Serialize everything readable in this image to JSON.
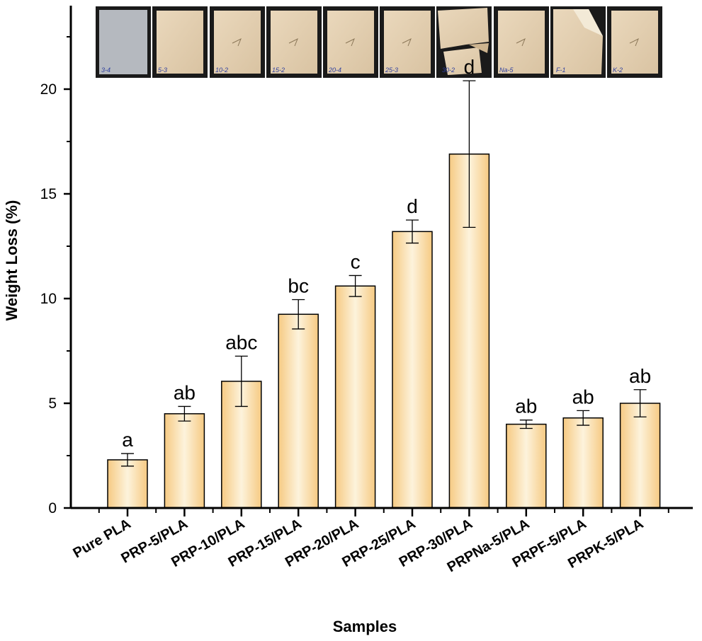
{
  "chart_data": {
    "type": "bar",
    "title": "",
    "xlabel": "Samples",
    "ylabel": "Weight Loss (%)",
    "ylim": [
      0,
      25
    ],
    "yticks": [
      0,
      5,
      10,
      15,
      20
    ],
    "categories": [
      "Pure PLA",
      "PRP-5/PLA",
      "PRP-10/PLA",
      "PRP-15/PLA",
      "PRP-20/PLA",
      "PRP-25/PLA",
      "PRP-30/PLA",
      "PRPNa-5/PLA",
      "PRPF-5/PLA",
      "PRPK-5/PLA"
    ],
    "values": [
      2.3,
      4.5,
      6.05,
      9.25,
      10.6,
      13.2,
      16.9,
      4.0,
      4.3,
      5.0
    ],
    "errors": [
      0.3,
      0.35,
      1.2,
      0.7,
      0.5,
      0.55,
      3.5,
      0.2,
      0.35,
      0.65
    ],
    "significance": [
      "a",
      "ab",
      "abc",
      "bc",
      "c",
      "d",
      "d",
      "ab",
      "ab",
      "ab"
    ],
    "photo_labels": [
      "3-4",
      "5-3",
      "10-2",
      "15-2",
      "20-4",
      "25-3",
      "30-2",
      "Na-5",
      "F-1",
      "K-2"
    ],
    "bar_color": "#f2cf96",
    "bar_edge_color": "#000000"
  }
}
